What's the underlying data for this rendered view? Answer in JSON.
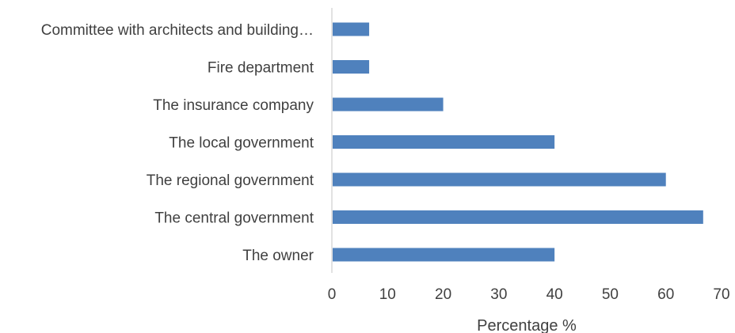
{
  "chart_data": {
    "type": "bar",
    "orientation": "horizontal",
    "title": "",
    "xlabel": "Percentage %",
    "ylabel": "",
    "categories": [
      "Committee with architects and building…",
      "Fire department",
      "The insurance company",
      "The local government",
      "The regional government",
      "The central government",
      "The owner"
    ],
    "values": [
      6.7,
      6.7,
      20,
      40,
      60,
      66.7,
      40
    ],
    "xlim": [
      0,
      70
    ],
    "xticks": [
      "0",
      "10",
      "20",
      "30",
      "40",
      "50",
      "60",
      "70"
    ],
    "grid": false,
    "legend": "none",
    "bar_color": "#4f81bd",
    "axis_color": "#d9d9d9",
    "text_color": "#404040"
  }
}
